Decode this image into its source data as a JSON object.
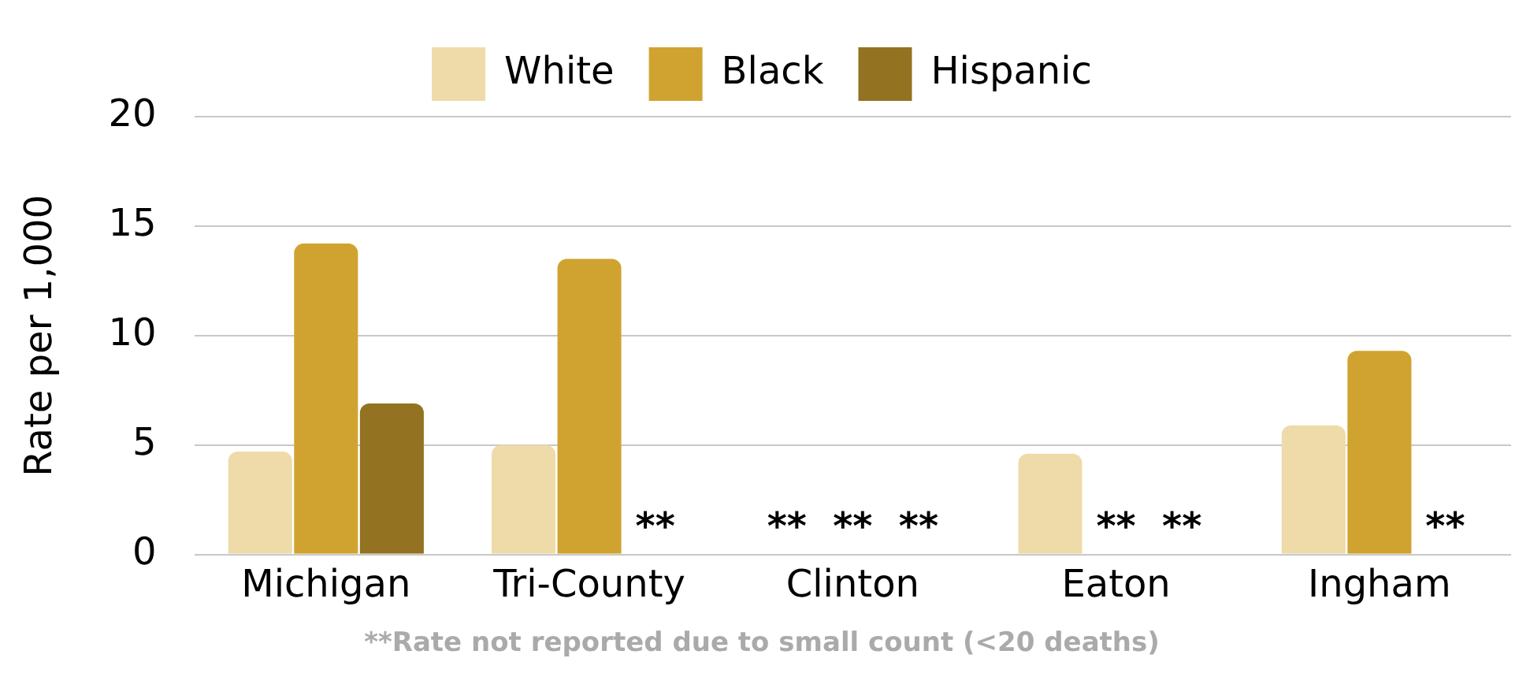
{
  "chart_data": {
    "type": "bar",
    "ylabel": "Rate per 1,000",
    "categories": [
      "Michigan",
      "Tri-County",
      "Clinton",
      "Eaton",
      "Ingham"
    ],
    "series": [
      {
        "name": "White",
        "color": "#eedba9",
        "values": [
          4.7,
          5.0,
          null,
          4.6,
          5.9
        ],
        "value_labels": [
          null,
          null,
          "**",
          null,
          null
        ]
      },
      {
        "name": "Black",
        "color": "#d0a330",
        "values": [
          14.2,
          13.5,
          null,
          null,
          9.3
        ],
        "value_labels": [
          null,
          null,
          "**",
          "**",
          null
        ]
      },
      {
        "name": "Hispanic",
        "color": "#937321",
        "values": [
          6.9,
          null,
          null,
          null,
          null
        ],
        "value_labels": [
          null,
          "**",
          "**",
          "**",
          "**"
        ]
      }
    ],
    "ylim": [
      0,
      20
    ],
    "yticks": [
      0,
      5,
      10,
      15,
      20
    ],
    "grid": "y",
    "legend": "top",
    "annotations": [
      "**Rate not reported due to small count (<20 deaths)"
    ]
  }
}
